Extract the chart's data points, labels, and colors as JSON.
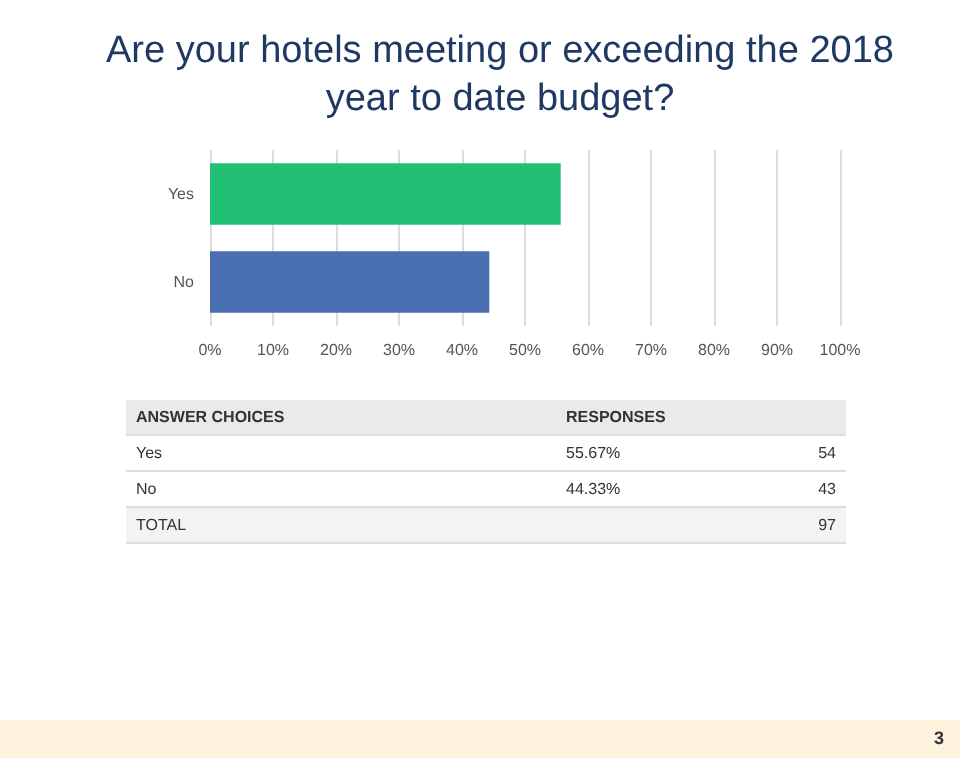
{
  "chart_data": {
    "type": "bar",
    "orientation": "horizontal",
    "title": "Are your hotels meeting or exceeding the 2018 year to date budget?",
    "categories": [
      "Yes",
      "No"
    ],
    "values": [
      55.67,
      44.33
    ],
    "colors": [
      "#21bf73",
      "#4a6fb0"
    ],
    "xlim": [
      0,
      100
    ],
    "xticks": [
      {
        "value": 0,
        "label": "0%"
      },
      {
        "value": 10,
        "label": "10%"
      },
      {
        "value": 20,
        "label": "20%"
      },
      {
        "value": 30,
        "label": "30%"
      },
      {
        "value": 40,
        "label": "40%"
      },
      {
        "value": 50,
        "label": "50%"
      },
      {
        "value": 60,
        "label": "60%"
      },
      {
        "value": 70,
        "label": "70%"
      },
      {
        "value": 80,
        "label": "80%"
      },
      {
        "value": 90,
        "label": "90%"
      },
      {
        "value": 100,
        "label": "100%"
      }
    ],
    "grid": "x",
    "annotations": [
      "ANSWER CHOICES",
      "RESPONSES",
      "55.67%",
      "54",
      "44.33%",
      "43",
      "TOTAL",
      "97",
      "3"
    ]
  }
}
